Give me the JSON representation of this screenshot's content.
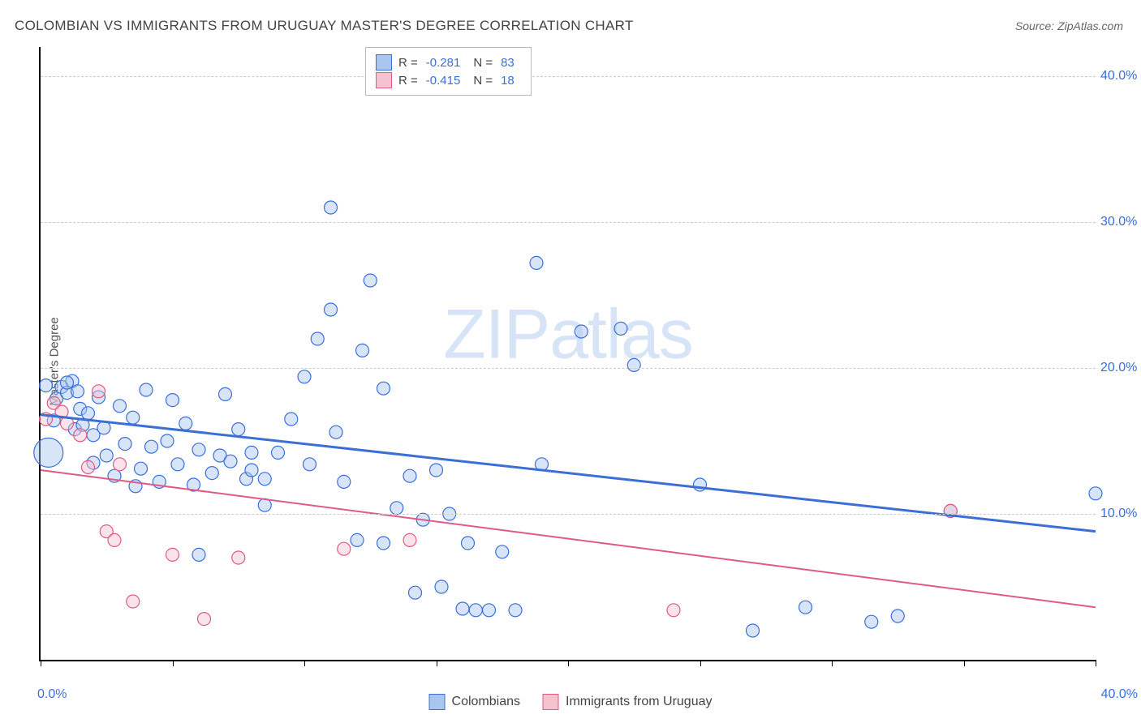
{
  "title": "COLOMBIAN VS IMMIGRANTS FROM URUGUAY MASTER'S DEGREE CORRELATION CHART",
  "source": "Source: ZipAtlas.com",
  "ylabel": "Master's Degree",
  "watermark_zip": "ZIP",
  "watermark_atlas": "atlas",
  "chart": {
    "type": "scatter",
    "xlim": [
      0,
      40
    ],
    "ylim": [
      0,
      42
    ],
    "xtick_left": "0.0%",
    "xtick_right": "40.0%",
    "xtick_positions": [
      0,
      5,
      10,
      15,
      20,
      25,
      30,
      35,
      40
    ],
    "yticks": [
      {
        "v": 10,
        "label": "10.0%"
      },
      {
        "v": 20,
        "label": "20.0%"
      },
      {
        "v": 30,
        "label": "30.0%"
      },
      {
        "v": 40,
        "label": "40.0%"
      }
    ],
    "grid_color": "#cccccc",
    "background": "#ffffff",
    "series": [
      {
        "name": "Colombians",
        "color_fill": "#a8c6f0",
        "color_stroke": "#3b6fd6",
        "fill_opacity": 0.45,
        "marker_r": 8,
        "R": "-0.281",
        "N": "83",
        "trend": {
          "x1": 0,
          "y1": 16.8,
          "x2": 40,
          "y2": 8.8,
          "width": 3
        },
        "points": [
          [
            0.2,
            18.8
          ],
          [
            0.3,
            14.2,
            18
          ],
          [
            0.5,
            16.4
          ],
          [
            0.6,
            17.9
          ],
          [
            0.8,
            18.7
          ],
          [
            1.0,
            18.3
          ],
          [
            1.2,
            19.1
          ],
          [
            1.3,
            15.8
          ],
          [
            1.4,
            18.4
          ],
          [
            1.5,
            17.2
          ],
          [
            1.6,
            16.1
          ],
          [
            1.8,
            16.9
          ],
          [
            2.0,
            15.4
          ],
          [
            2.0,
            13.5
          ],
          [
            2.2,
            18.0
          ],
          [
            2.4,
            15.9
          ],
          [
            2.5,
            14.0
          ],
          [
            2.8,
            12.6
          ],
          [
            3.0,
            17.4
          ],
          [
            3.2,
            14.8
          ],
          [
            3.5,
            16.6
          ],
          [
            3.6,
            11.9
          ],
          [
            3.8,
            13.1
          ],
          [
            4.0,
            18.5
          ],
          [
            4.2,
            14.6
          ],
          [
            4.5,
            12.2
          ],
          [
            4.8,
            15.0
          ],
          [
            5.0,
            17.8
          ],
          [
            5.2,
            13.4
          ],
          [
            5.5,
            16.2
          ],
          [
            5.8,
            12.0
          ],
          [
            6.0,
            14.4
          ],
          [
            6.0,
            7.2
          ],
          [
            6.5,
            12.8
          ],
          [
            6.8,
            14.0
          ],
          [
            7.0,
            18.2
          ],
          [
            7.2,
            13.6
          ],
          [
            7.5,
            15.8
          ],
          [
            7.8,
            12.4
          ],
          [
            8.0,
            14.2
          ],
          [
            8.0,
            13.0
          ],
          [
            8.5,
            10.6
          ],
          [
            8.5,
            12.4
          ],
          [
            9.0,
            14.2
          ],
          [
            9.5,
            16.5
          ],
          [
            10.0,
            19.4
          ],
          [
            10.2,
            13.4
          ],
          [
            10.5,
            22.0
          ],
          [
            11.0,
            24.0
          ],
          [
            11.0,
            31.0
          ],
          [
            11.2,
            15.6
          ],
          [
            11.5,
            12.2
          ],
          [
            12.0,
            8.2
          ],
          [
            12.2,
            21.2
          ],
          [
            12.5,
            26.0
          ],
          [
            13.0,
            18.6
          ],
          [
            13.0,
            8.0
          ],
          [
            13.5,
            10.4
          ],
          [
            14.0,
            12.6
          ],
          [
            14.2,
            4.6
          ],
          [
            14.5,
            9.6
          ],
          [
            15.0,
            13.0
          ],
          [
            15.2,
            5.0
          ],
          [
            15.5,
            10.0
          ],
          [
            16.0,
            3.5
          ],
          [
            16.2,
            8.0
          ],
          [
            16.5,
            3.4
          ],
          [
            17.0,
            3.4
          ],
          [
            17.5,
            7.4
          ],
          [
            18.0,
            3.4
          ],
          [
            18.8,
            27.2
          ],
          [
            19.0,
            13.4
          ],
          [
            20.5,
            22.5
          ],
          [
            22.0,
            22.7
          ],
          [
            22.5,
            20.2
          ],
          [
            25.0,
            12.0
          ],
          [
            27.0,
            2.0
          ],
          [
            29.0,
            3.6
          ],
          [
            31.5,
            2.6
          ],
          [
            32.5,
            3.0
          ],
          [
            34.5,
            10.2
          ],
          [
            40.0,
            11.4
          ],
          [
            1.0,
            19.0
          ]
        ]
      },
      {
        "name": "Immigrants from Uruguay",
        "color_fill": "#f5c2cf",
        "color_stroke": "#e05a87",
        "fill_opacity": 0.45,
        "marker_r": 8,
        "R": "-0.415",
        "N": "18",
        "trend": {
          "x1": 0,
          "y1": 13.0,
          "x2": 40,
          "y2": 3.6,
          "width": 2
        },
        "points": [
          [
            0.2,
            16.5
          ],
          [
            0.5,
            17.6
          ],
          [
            0.8,
            17.0
          ],
          [
            1.0,
            16.2
          ],
          [
            1.5,
            15.4
          ],
          [
            1.8,
            13.2
          ],
          [
            2.2,
            18.4
          ],
          [
            2.5,
            8.8
          ],
          [
            2.8,
            8.2
          ],
          [
            3.0,
            13.4
          ],
          [
            3.5,
            4.0
          ],
          [
            5.0,
            7.2
          ],
          [
            6.2,
            2.8
          ],
          [
            7.5,
            7.0
          ],
          [
            11.5,
            7.6
          ],
          [
            14.0,
            8.2
          ],
          [
            24.0,
            3.4
          ],
          [
            34.5,
            10.2
          ]
        ]
      }
    ]
  },
  "legend_top": {
    "r_label": "R =",
    "n_label": "N ="
  },
  "legend_bottom": {
    "s1": "Colombians",
    "s2": "Immigrants from Uruguay"
  }
}
